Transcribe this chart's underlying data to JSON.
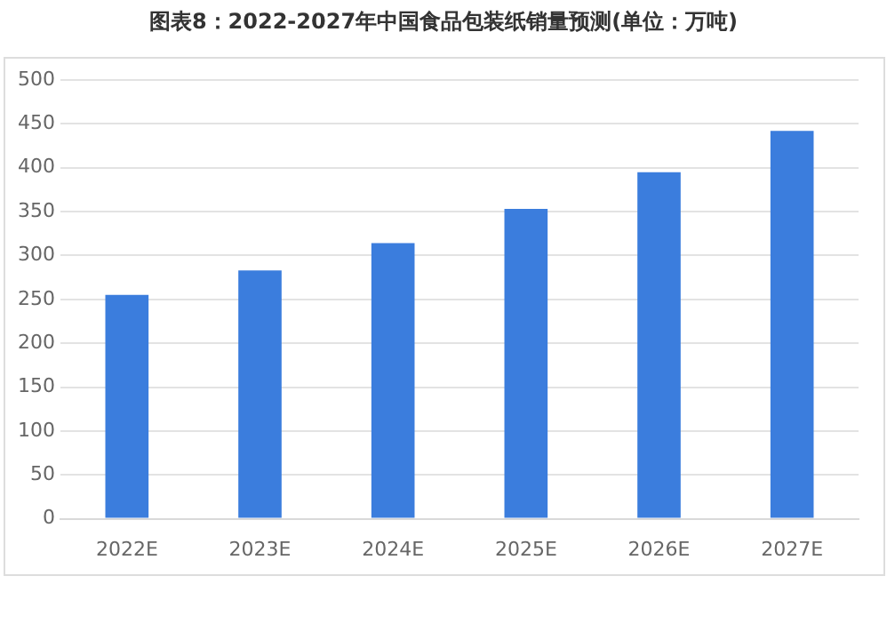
{
  "chart_data": {
    "type": "bar",
    "title": "图表8：2022-2027年中国食品包装纸销量预测(单位：万吨)",
    "categories": [
      "2022E",
      "2023E",
      "2024E",
      "2025E",
      "2026E",
      "2027E"
    ],
    "values": [
      255,
      283,
      314,
      353,
      395,
      442
    ],
    "color": "#3b7ddd",
    "ylim": [
      0,
      500
    ],
    "yticks": [
      0,
      50,
      100,
      150,
      200,
      250,
      300,
      350,
      400,
      450,
      500
    ],
    "grid": "y"
  }
}
